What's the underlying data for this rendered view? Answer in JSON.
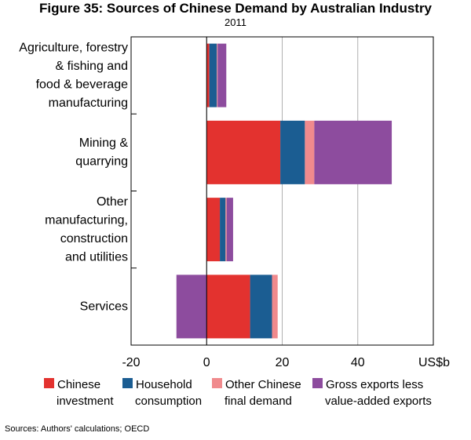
{
  "figure": {
    "title": "Figure 35: Sources of Chinese Demand by Australian Industry",
    "subtitle": "2011"
  },
  "chart_data": {
    "type": "bar",
    "orientation": "horizontal",
    "stacked": true,
    "title": "Figure 35: Sources of Chinese Demand by Australian Industry",
    "subtitle": "2011",
    "categories": [
      [
        "Agriculture, forestry",
        "& fishing and",
        "food & beverage",
        "manufacturing"
      ],
      [
        "Mining &",
        "quarrying"
      ],
      [
        "Other",
        "manufacturing,",
        "construction",
        "and utilities"
      ],
      [
        "Services"
      ]
    ],
    "series": [
      {
        "name": "Chinese investment",
        "legend_lines": [
          "Chinese",
          "investment"
        ],
        "color": "#e3322f",
        "values": [
          0.7,
          19.5,
          3.5,
          11.5
        ]
      },
      {
        "name": "Household consumption",
        "legend_lines": [
          "Household",
          "consumption"
        ],
        "color": "#1b5d92",
        "values": [
          2.0,
          6.5,
          1.5,
          5.8
        ]
      },
      {
        "name": "Other Chinese final demand",
        "legend_lines": [
          "Other Chinese",
          "final demand"
        ],
        "color": "#f08a8d",
        "values": [
          0.2,
          2.5,
          0.3,
          1.5
        ]
      },
      {
        "name": "Gross exports less value-added exports",
        "legend_lines": [
          "Gross exports less",
          "value-added exports"
        ],
        "color": "#8d4c9e",
        "values": [
          2.3,
          20.5,
          1.7,
          -8.0
        ]
      }
    ],
    "xlim": [
      -20,
      60
    ],
    "xticks": [
      -20,
      0,
      20,
      40
    ],
    "xtick_labels": [
      "-20",
      "0",
      "20",
      "40"
    ],
    "xlabel": "US$b",
    "grid": true
  },
  "sources": "Sources:    Authors' calculations; OECD"
}
